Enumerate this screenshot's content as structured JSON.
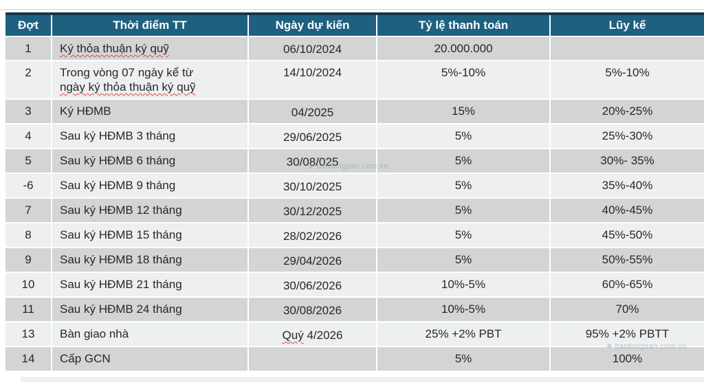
{
  "colors": {
    "header_bg": "#1e6080",
    "header_top_border": "#14384a",
    "row_dark": "#d2d4d5",
    "row_light": "#edeff1",
    "spellcheck_underline": "#e04a3f"
  },
  "watermark": {
    "text": "batdongsan.com.vn",
    "icon": "diamond-icon"
  },
  "table": {
    "columns": [
      {
        "key": "dot",
        "label": "Đợt"
      },
      {
        "key": "moment",
        "label": "Thời điểm TT"
      },
      {
        "key": "date",
        "label": "Ngày dự kiến"
      },
      {
        "key": "rate",
        "label": "Tỷ lệ thanh toán"
      },
      {
        "key": "cum",
        "label": "Lũy kế"
      }
    ],
    "rows": [
      {
        "dot": "1",
        "moment": [
          {
            "t": "Ký thỏa thuận ký quỹ",
            "wavy": true
          }
        ],
        "date": [
          {
            "t": "06/10/2024"
          }
        ],
        "rate": "20.000.000",
        "cum": ""
      },
      {
        "dot": "2",
        "moment": [
          {
            "t": "Trong vòng 07 ngày kể từ"
          },
          {
            "t": "ngày ký thỏa thuận ký quỹ",
            "wavy": true
          }
        ],
        "date": [
          {
            "t": "14/10/2024"
          }
        ],
        "rate": "5%-10%",
        "cum": "5%-10%",
        "tall": true
      },
      {
        "dot": "3",
        "moment": [
          {
            "t": "Ký HĐMB"
          }
        ],
        "date": [
          {
            "t": "04/2025"
          }
        ],
        "rate": "15%",
        "cum": "20%-25%"
      },
      {
        "dot": "4",
        "moment": [
          {
            "t": "Sau ký HĐMB 3 tháng"
          }
        ],
        "date": [
          {
            "t": "29/06/2025"
          }
        ],
        "rate": "5%",
        "cum": "25%-30%"
      },
      {
        "dot": "5",
        "moment": [
          {
            "t": "Sau ký HĐMB 6 tháng"
          }
        ],
        "date": [
          {
            "t": "30/08/025"
          }
        ],
        "rate": "5%",
        "cum": "30%- 35%"
      },
      {
        "dot": "-6",
        "moment": [
          {
            "t": "Sau ký HĐMB 9 tháng"
          }
        ],
        "date": [
          {
            "t": "30/10/2025"
          }
        ],
        "rate": "5%",
        "cum": "35%-40%"
      },
      {
        "dot": "7",
        "moment": [
          {
            "t": "Sau ký HĐMB 12 tháng"
          }
        ],
        "date": [
          {
            "t": "30/12/2025"
          }
        ],
        "rate": "5%",
        "cum": "40%-45%"
      },
      {
        "dot": "8",
        "moment": [
          {
            "t": "Sau ký HĐMB 15 tháng"
          }
        ],
        "date": [
          {
            "t": "28/02/2026"
          }
        ],
        "rate": "5%",
        "cum": "45%-50%"
      },
      {
        "dot": "9",
        "moment": [
          {
            "t": "Sau ký HĐMB 18 tháng"
          }
        ],
        "date": [
          {
            "t": "29/04/2026"
          }
        ],
        "rate": "5%",
        "cum": "50%-55%"
      },
      {
        "dot": "10",
        "moment": [
          {
            "t": "Sau ký HĐMB 21 tháng"
          }
        ],
        "date": [
          {
            "t": "30/06/2026"
          }
        ],
        "rate": "10%-5%",
        "cum": "60%-65%"
      },
      {
        "dot": "11",
        "moment": [
          {
            "t": "Sau ký HĐMB 24 tháng"
          }
        ],
        "date": [
          {
            "t": "30/08/2026"
          }
        ],
        "rate": "10%-5%",
        "cum": "70%"
      },
      {
        "dot": "13",
        "moment": [
          {
            "t": "Bàn giao nhà"
          }
        ],
        "date": [
          {
            "t": "Quý",
            "wavy": true
          },
          {
            "t": " 4/2026"
          }
        ],
        "rate": "25% +2% PBT",
        "cum": "95% +2% PBTT"
      },
      {
        "dot": "14",
        "moment": [
          {
            "t": "Cấp GCN"
          }
        ],
        "date": [],
        "rate": "5%",
        "cum": "100%"
      }
    ]
  }
}
